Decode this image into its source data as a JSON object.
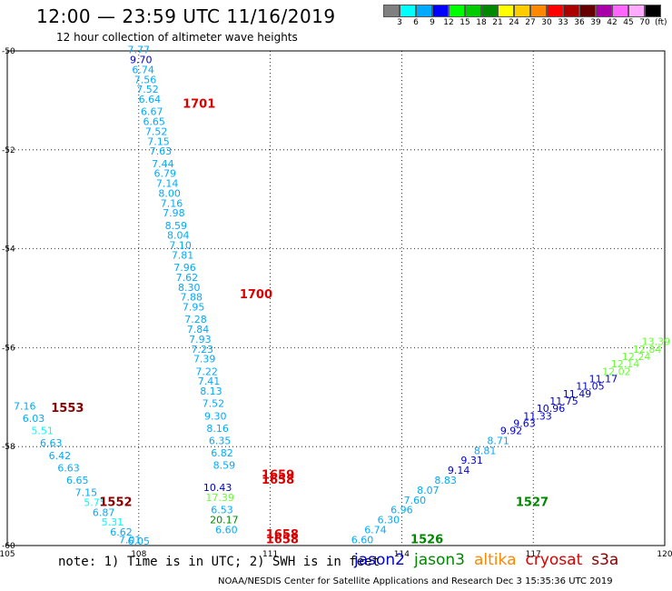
{
  "header": {
    "title": "12:00 — 23:59 UTC 11/16/2019",
    "subtitle": "12 hour collection of altimeter wave heights"
  },
  "colorbar": {
    "colors": [
      "#808080",
      "#00ffff",
      "#00aaff",
      "#0000ff",
      "#00ff00",
      "#00cc00",
      "#008800",
      "#ffff00",
      "#ffcc00",
      "#ff8800",
      "#ff0000",
      "#aa0000",
      "#660000",
      "#aa00aa",
      "#ff66ff",
      "#ffaaff",
      "#000000"
    ],
    "labels": [
      "3",
      "6",
      "9",
      "12",
      "15",
      "18",
      "21",
      "24",
      "27",
      "30",
      "33",
      "36",
      "39",
      "42",
      "45",
      "70"
    ],
    "unit": "(ft)"
  },
  "note": "note: 1) Time is in UTC; 2) SWH is in feet",
  "legend": [
    {
      "name": "jason2",
      "color": "#0000cc"
    },
    {
      "name": "jason3",
      "color": "#008800"
    },
    {
      "name": "altika",
      "color": "#ff8800"
    },
    {
      "name": "cryosat",
      "color": "#dd0000"
    },
    {
      "name": "s3a",
      "color": "#880000"
    }
  ],
  "credit": "NOAA/NESDIS Center for Satellite Applications and Research    Dec  3 15:35:36 UTC 2019",
  "chart_data": {
    "type": "scatter",
    "title": "12 hour collection of altimeter wave heights",
    "xlim": [
      105,
      120
    ],
    "ylim": [
      -60,
      -50
    ],
    "xticks": [
      105,
      108,
      111,
      114,
      117,
      120
    ],
    "yticks": [
      -50,
      -52,
      -54,
      -56,
      -58,
      -60
    ],
    "xtick_labels": [
      "105",
      "108",
      "111",
      "114",
      "117",
      "120"
    ],
    "ytick_labels": [
      "-50",
      "-52",
      "-54",
      "-56",
      "-58",
      "-60"
    ],
    "grid": true,
    "track_times": [
      {
        "text": "1701",
        "x": 109.0,
        "y": -51.15,
        "color": "#dd0000"
      },
      {
        "text": "1700",
        "x": 110.3,
        "y": -55.0,
        "color": "#dd0000"
      },
      {
        "text": "1553",
        "x": 106.0,
        "y": -57.3,
        "color": "#880000"
      },
      {
        "text": "1552",
        "x": 107.1,
        "y": -59.2,
        "color": "#880000"
      },
      {
        "text": "1659",
        "x": 110.8,
        "y": -58.65,
        "color": "#dd0000"
      },
      {
        "text": "1658",
        "x": 110.8,
        "y": -58.75,
        "color": "#dd0000"
      },
      {
        "text": "1658",
        "x": 110.9,
        "y": -59.85,
        "color": "#dd0000"
      },
      {
        "text": "1658",
        "x": 110.9,
        "y": -59.95,
        "color": "#dd0000"
      },
      {
        "text": "1527",
        "x": 116.6,
        "y": -59.2,
        "color": "#008800"
      },
      {
        "text": "1526",
        "x": 114.2,
        "y": -59.95,
        "color": "#008800"
      }
    ],
    "series": [
      {
        "name": "cryosat",
        "points": [
          {
            "x": 108.0,
            "y": -50.05,
            "v": "7.77",
            "c": "#00aaff"
          },
          {
            "x": 108.05,
            "y": -50.25,
            "v": "9.70",
            "c": "#0000cc"
          },
          {
            "x": 108.1,
            "y": -50.45,
            "v": "6.74",
            "c": "#00aaff"
          },
          {
            "x": 108.15,
            "y": -50.65,
            "v": "7.56",
            "c": "#00aaff"
          },
          {
            "x": 108.2,
            "y": -50.85,
            "v": "7.52",
            "c": "#00aaff"
          },
          {
            "x": 108.25,
            "y": -51.05,
            "v": "6.64",
            "c": "#00aaff"
          },
          {
            "x": 108.3,
            "y": -51.3,
            "v": "6.67",
            "c": "#00aaff"
          },
          {
            "x": 108.35,
            "y": -51.5,
            "v": "6.65",
            "c": "#00aaff"
          },
          {
            "x": 108.4,
            "y": -51.7,
            "v": "7.52",
            "c": "#00aaff"
          },
          {
            "x": 108.45,
            "y": -51.9,
            "v": "7.15",
            "c": "#00aaff"
          },
          {
            "x": 108.5,
            "y": -52.1,
            "v": "7.63",
            "c": "#00aaff"
          },
          {
            "x": 108.55,
            "y": -52.35,
            "v": "7.44",
            "c": "#00aaff"
          },
          {
            "x": 108.6,
            "y": -52.55,
            "v": "6.79",
            "c": "#00aaff"
          },
          {
            "x": 108.65,
            "y": -52.75,
            "v": "7.14",
            "c": "#00aaff"
          },
          {
            "x": 108.7,
            "y": -52.95,
            "v": "8.00",
            "c": "#00aaff"
          },
          {
            "x": 108.75,
            "y": -53.15,
            "v": "7.16",
            "c": "#00aaff"
          },
          {
            "x": 108.8,
            "y": -53.35,
            "v": "7.98",
            "c": "#00aaff"
          },
          {
            "x": 108.85,
            "y": -53.6,
            "v": "8.59",
            "c": "#00aaff"
          },
          {
            "x": 108.9,
            "y": -53.8,
            "v": "8.04",
            "c": "#00aaff"
          },
          {
            "x": 108.95,
            "y": -54.0,
            "v": "7.10",
            "c": "#00aaff"
          },
          {
            "x": 109.0,
            "y": -54.2,
            "v": "7.81",
            "c": "#00aaff"
          },
          {
            "x": 109.05,
            "y": -54.45,
            "v": "7.96",
            "c": "#00aaff"
          },
          {
            "x": 109.1,
            "y": -54.65,
            "v": "7.62",
            "c": "#00aaff"
          },
          {
            "x": 109.15,
            "y": -54.85,
            "v": "8.30",
            "c": "#00aaff"
          },
          {
            "x": 109.2,
            "y": -55.05,
            "v": "7.88",
            "c": "#00aaff"
          },
          {
            "x": 109.25,
            "y": -55.25,
            "v": "7.95",
            "c": "#00aaff"
          },
          {
            "x": 109.3,
            "y": -55.5,
            "v": "7.28",
            "c": "#00aaff"
          },
          {
            "x": 109.35,
            "y": -55.7,
            "v": "7.84",
            "c": "#00aaff"
          },
          {
            "x": 109.4,
            "y": -55.9,
            "v": "7.93",
            "c": "#00aaff"
          },
          {
            "x": 109.45,
            "y": -56.1,
            "v": "7.23",
            "c": "#00aaff"
          },
          {
            "x": 109.5,
            "y": -56.3,
            "v": "7.39",
            "c": "#00aaff"
          },
          {
            "x": 109.55,
            "y": -56.55,
            "v": "7.22",
            "c": "#00aaff"
          },
          {
            "x": 109.6,
            "y": -56.75,
            "v": "7.41",
            "c": "#00aaff"
          },
          {
            "x": 109.65,
            "y": -56.95,
            "v": "8.13",
            "c": "#00aaff"
          },
          {
            "x": 109.7,
            "y": -57.2,
            "v": "7.52",
            "c": "#00aaff"
          },
          {
            "x": 109.75,
            "y": -57.45,
            "v": "9.30",
            "c": "#00aaff"
          },
          {
            "x": 109.8,
            "y": -57.7,
            "v": "8.16",
            "c": "#00aaff"
          },
          {
            "x": 109.85,
            "y": -57.95,
            "v": "6.35",
            "c": "#00aaff"
          },
          {
            "x": 109.9,
            "y": -58.2,
            "v": "6.82",
            "c": "#00aaff"
          },
          {
            "x": 109.95,
            "y": -58.45,
            "v": "8.59",
            "c": "#00aaff"
          }
        ]
      },
      {
        "name": "jason2",
        "points": [
          {
            "x": 109.8,
            "y": -58.9,
            "v": "10.43",
            "c": "#0000cc"
          },
          {
            "x": 109.85,
            "y": -59.1,
            "v": "17.39",
            "c": "#66ff33"
          },
          {
            "x": 109.9,
            "y": -59.35,
            "v": "6.53",
            "c": "#00aaff"
          },
          {
            "x": 109.95,
            "y": -59.55,
            "v": "20.17",
            "c": "#008800"
          },
          {
            "x": 110.0,
            "y": -59.75,
            "v": "6.60",
            "c": "#00aaff"
          }
        ]
      },
      {
        "name": "s3a",
        "points": [
          {
            "x": 105.4,
            "y": -57.25,
            "v": "7.16",
            "c": "#00aaff"
          },
          {
            "x": 105.6,
            "y": -57.5,
            "v": "6.03",
            "c": "#00aaff"
          },
          {
            "x": 105.8,
            "y": -57.75,
            "v": "5.51",
            "c": "#00ffff"
          },
          {
            "x": 106.0,
            "y": -58.0,
            "v": "6.63",
            "c": "#00aaff"
          },
          {
            "x": 106.2,
            "y": -58.25,
            "v": "6.42",
            "c": "#00aaff"
          },
          {
            "x": 106.4,
            "y": -58.5,
            "v": "6.63",
            "c": "#00aaff"
          },
          {
            "x": 106.6,
            "y": -58.75,
            "v": "6.65",
            "c": "#00aaff"
          },
          {
            "x": 106.8,
            "y": -59.0,
            "v": "7.15",
            "c": "#00aaff"
          },
          {
            "x": 107.0,
            "y": -59.2,
            "v": "5.75",
            "c": "#00ffff"
          },
          {
            "x": 107.2,
            "y": -59.4,
            "v": "6.87",
            "c": "#00aaff"
          },
          {
            "x": 107.4,
            "y": -59.6,
            "v": "5.31",
            "c": "#00ffff"
          },
          {
            "x": 107.6,
            "y": -59.8,
            "v": "6.62",
            "c": "#00aaff"
          },
          {
            "x": 107.8,
            "y": -59.95,
            "v": "7.01",
            "c": "#00aaff"
          },
          {
            "x": 108.0,
            "y": -59.98,
            "v": "6.05",
            "c": "#00aaff"
          }
        ]
      },
      {
        "name": "jason3",
        "points": [
          {
            "x": 113.1,
            "y": -59.95,
            "v": "6.60",
            "c": "#00aaff"
          },
          {
            "x": 113.4,
            "y": -59.75,
            "v": "6.74",
            "c": "#00aaff"
          },
          {
            "x": 113.7,
            "y": -59.55,
            "v": "6.30",
            "c": "#00aaff"
          },
          {
            "x": 114.0,
            "y": -59.35,
            "v": "6.96",
            "c": "#00aaff"
          },
          {
            "x": 114.3,
            "y": -59.15,
            "v": "7.60",
            "c": "#00aaff"
          },
          {
            "x": 114.6,
            "y": -58.95,
            "v": "8.07",
            "c": "#00aaff"
          },
          {
            "x": 115.0,
            "y": -58.75,
            "v": "8.83",
            "c": "#00aaff"
          },
          {
            "x": 115.3,
            "y": -58.55,
            "v": "9.14",
            "c": "#0000cc"
          },
          {
            "x": 115.6,
            "y": -58.35,
            "v": "9.31",
            "c": "#0000cc"
          },
          {
            "x": 115.9,
            "y": -58.15,
            "v": "8.81",
            "c": "#00aaff"
          },
          {
            "x": 116.2,
            "y": -57.95,
            "v": "8.71",
            "c": "#00aaff"
          },
          {
            "x": 116.5,
            "y": -57.75,
            "v": "9.92",
            "c": "#0000cc"
          },
          {
            "x": 116.8,
            "y": -57.6,
            "v": "9.63",
            "c": "#0000cc"
          },
          {
            "x": 117.1,
            "y": -57.45,
            "v": "11.33",
            "c": "#0000cc"
          },
          {
            "x": 117.4,
            "y": -57.3,
            "v": "10.96",
            "c": "#0000cc"
          },
          {
            "x": 117.7,
            "y": -57.15,
            "v": "11.75",
            "c": "#0000cc"
          },
          {
            "x": 118.0,
            "y": -57.0,
            "v": "11.49",
            "c": "#0000cc"
          },
          {
            "x": 118.3,
            "y": -56.85,
            "v": "11.05",
            "c": "#0000cc"
          },
          {
            "x": 118.6,
            "y": -56.7,
            "v": "11.17",
            "c": "#0000cc"
          },
          {
            "x": 118.9,
            "y": -56.55,
            "v": "12.02",
            "c": "#66ff33"
          },
          {
            "x": 119.1,
            "y": -56.4,
            "v": "12.14",
            "c": "#66ff33"
          },
          {
            "x": 119.35,
            "y": -56.25,
            "v": "12.24",
            "c": "#66ff33"
          },
          {
            "x": 119.6,
            "y": -56.1,
            "v": "12.84",
            "c": "#66ff33"
          },
          {
            "x": 119.8,
            "y": -55.95,
            "v": "13.39",
            "c": "#66ff33"
          }
        ]
      }
    ]
  }
}
